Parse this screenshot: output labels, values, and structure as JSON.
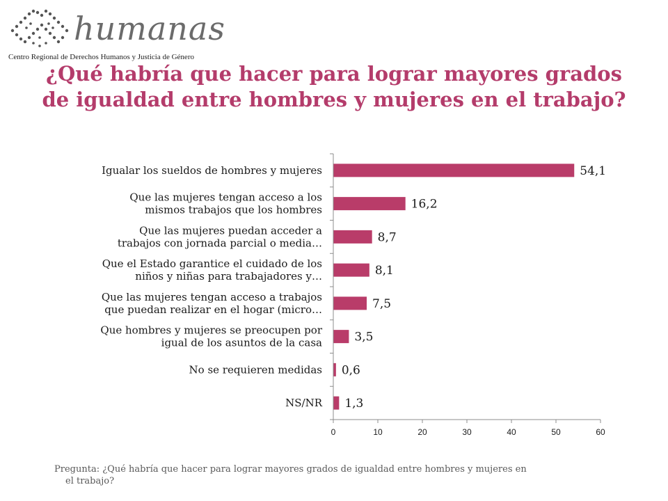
{
  "logo": {
    "brand": "humanas",
    "tagline": "Centro Regional de Derechos Humanos y Justicia de Género"
  },
  "chart_data": {
    "type": "bar",
    "orientation": "horizontal",
    "title": "¿Qué habría que hacer para lograr mayores grados de igualdad entre hombres y mujeres en el trabajo?",
    "categories": [
      [
        "Igualar los sueldos de hombres y mujeres"
      ],
      [
        "Que las mujeres tengan acceso a los",
        "mismos trabajos que los hombres"
      ],
      [
        "Que las mujeres puedan acceder a",
        "trabajos con jornada parcial o media…"
      ],
      [
        "Que el Estado garantice el cuidado de los",
        "niños y niñas para trabajadores y…"
      ],
      [
        "Que las mujeres tengan acceso a trabajos",
        "que puedan realizar en el hogar (micro…"
      ],
      [
        "Que hombres y mujeres se preocupen por",
        "igual de los asuntos de la casa"
      ],
      [
        "No se requieren medidas"
      ],
      [
        "NS/NR"
      ]
    ],
    "values": [
      54.1,
      16.2,
      8.7,
      8.1,
      7.5,
      3.5,
      0.6,
      1.3
    ],
    "value_labels": [
      "54,1",
      "16,2",
      "8,7",
      "8,1",
      "7,5",
      "3,5",
      "0,6",
      "1,3"
    ],
    "xlim": [
      0,
      60
    ],
    "xticks": [
      "0",
      "10",
      "20",
      "30",
      "40",
      "50",
      "60"
    ],
    "bar_color": "#b93c69",
    "grid": false,
    "legend": "none"
  },
  "footnote": {
    "line1": "Pregunta: ¿Qué habría que hacer para lograr mayores grados de igualdad entre hombres y mujeres en",
    "line2": "el trabajo?"
  }
}
